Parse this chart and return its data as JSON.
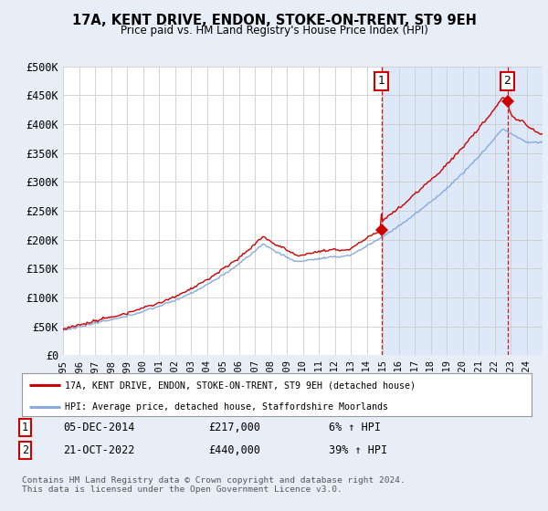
{
  "title": "17A, KENT DRIVE, ENDON, STOKE-ON-TRENT, ST9 9EH",
  "subtitle": "Price paid vs. HM Land Registry's House Price Index (HPI)",
  "ylabel_ticks": [
    "£0",
    "£50K",
    "£100K",
    "£150K",
    "£200K",
    "£250K",
    "£300K",
    "£350K",
    "£400K",
    "£450K",
    "£500K"
  ],
  "ytick_vals": [
    0,
    50000,
    100000,
    150000,
    200000,
    250000,
    300000,
    350000,
    400000,
    450000,
    500000
  ],
  "ylim": [
    0,
    500000
  ],
  "xlim_start": 1995.0,
  "xlim_end": 2025.0,
  "red_line_color": "#cc0000",
  "blue_line_color": "#88aadd",
  "shade_color": "#dde8f8",
  "background_color": "#e8eef8",
  "plot_bg_color": "#ffffff",
  "grid_color": "#cccccc",
  "sale1_x": 2014.92,
  "sale1_y": 217000,
  "sale2_x": 2022.8,
  "sale2_y": 440000,
  "legend_line1": "17A, KENT DRIVE, ENDON, STOKE-ON-TRENT, ST9 9EH (detached house)",
  "legend_line2": "HPI: Average price, detached house, Staffordshire Moorlands",
  "fn1_box": "1",
  "fn1_date": "05-DEC-2014",
  "fn1_price": "£217,000",
  "fn1_change": "6% ↑ HPI",
  "fn2_box": "2",
  "fn2_date": "21-OCT-2022",
  "fn2_price": "£440,000",
  "fn2_change": "39% ↑ HPI",
  "copyright": "Contains HM Land Registry data © Crown copyright and database right 2024.\nThis data is licensed under the Open Government Licence v3.0."
}
